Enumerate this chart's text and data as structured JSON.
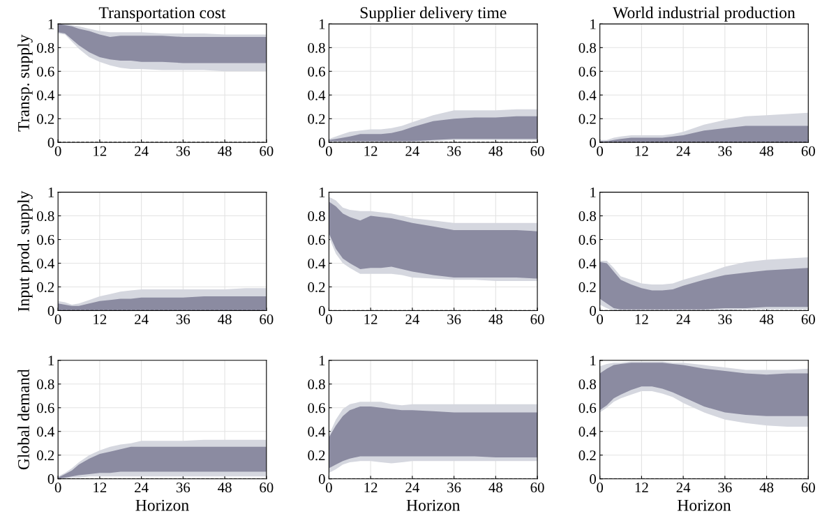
{
  "chart_data": [
    {
      "type": "area",
      "title": "Transportation cost",
      "ylabel": "Transp. supply",
      "x": [
        0,
        2,
        4,
        6,
        9,
        12,
        15,
        18,
        21,
        24,
        30,
        36,
        42,
        48,
        54,
        60
      ],
      "xlim": [
        0,
        60
      ],
      "xticks": [
        0,
        12,
        24,
        36,
        48,
        60
      ],
      "ylim": [
        0,
        1
      ],
      "yticks": [
        0,
        0.2,
        0.4,
        0.6,
        0.8,
        1
      ],
      "grid": true,
      "ref_lines": [
        {
          "axis": "y",
          "value": 0,
          "color": "#000000",
          "line_style": "dashed"
        }
      ],
      "series": [
        {
          "color": "#d5d7df",
          "values": [
            null,
            null,
            null,
            null,
            null,
            null,
            null,
            null,
            null,
            null,
            null,
            null,
            null,
            null,
            null,
            null
          ],
          "lower": [
            0.92,
            0.91,
            0.85,
            0.79,
            0.72,
            0.68,
            0.65,
            0.63,
            0.62,
            0.62,
            0.61,
            0.61,
            0.61,
            0.6,
            0.6,
            0.6
          ],
          "upper": [
            1,
            1,
            0.99,
            0.98,
            0.96,
            0.94,
            0.93,
            0.93,
            0.93,
            0.93,
            0.92,
            0.92,
            0.92,
            0.91,
            0.91,
            0.91
          ]
        },
        {
          "color": "#8b8ba1",
          "values": [
            null,
            null,
            null,
            null,
            null,
            null,
            null,
            null,
            null,
            null,
            null,
            null,
            null,
            null,
            null,
            null
          ],
          "lower": [
            0.93,
            0.92,
            0.87,
            0.82,
            0.76,
            0.72,
            0.7,
            0.69,
            0.69,
            0.68,
            0.68,
            0.67,
            0.67,
            0.67,
            0.67,
            0.67
          ],
          "upper": [
            1,
            0.99,
            0.98,
            0.96,
            0.94,
            0.91,
            0.89,
            0.9,
            0.9,
            0.9,
            0.9,
            0.89,
            0.89,
            0.89,
            0.89,
            0.89
          ]
        }
      ]
    },
    {
      "type": "area",
      "title": "Supplier delivery time",
      "x": [
        0,
        2,
        4,
        6,
        9,
        12,
        15,
        18,
        21,
        24,
        30,
        36,
        42,
        48,
        54,
        60
      ],
      "xlim": [
        0,
        60
      ],
      "xticks": [
        0,
        12,
        24,
        36,
        48,
        60
      ],
      "ylim": [
        0,
        1
      ],
      "yticks": [
        0,
        0.2,
        0.4,
        0.6,
        0.8,
        1
      ],
      "grid": true,
      "ref_lines": [
        {
          "axis": "y",
          "value": 0,
          "color": "#000000",
          "line_style": "dashed"
        }
      ],
      "series": [
        {
          "color": "#d5d7df",
          "values": [
            null,
            null,
            null,
            null,
            null,
            null,
            null,
            null,
            null,
            null,
            null,
            null,
            null,
            null,
            null,
            null
          ],
          "lower": [
            0,
            0,
            0,
            0,
            0,
            0,
            0,
            0,
            0,
            0,
            0.01,
            0.02,
            0.02,
            0.02,
            0.02,
            0.02
          ],
          "upper": [
            0.03,
            0.05,
            0.07,
            0.09,
            0.1,
            0.11,
            0.11,
            0.12,
            0.14,
            0.17,
            0.23,
            0.27,
            0.27,
            0.27,
            0.28,
            0.28
          ]
        },
        {
          "color": "#8b8ba1",
          "values": [
            null,
            null,
            null,
            null,
            null,
            null,
            null,
            null,
            null,
            null,
            null,
            null,
            null,
            null,
            null,
            null
          ],
          "lower": [
            0.01,
            0.01,
            0.01,
            0.01,
            0.01,
            0.01,
            0.01,
            0.01,
            0.01,
            0.01,
            0.02,
            0.03,
            0.03,
            0.03,
            0.03,
            0.03
          ],
          "upper": [
            0.02,
            0.03,
            0.04,
            0.05,
            0.07,
            0.07,
            0.07,
            0.08,
            0.1,
            0.13,
            0.18,
            0.2,
            0.21,
            0.21,
            0.22,
            0.22
          ]
        }
      ]
    },
    {
      "type": "area",
      "title": "World industrial production",
      "x": [
        0,
        2,
        4,
        6,
        9,
        12,
        15,
        18,
        21,
        24,
        30,
        36,
        42,
        48,
        54,
        60
      ],
      "xlim": [
        0,
        60
      ],
      "xticks": [
        0,
        12,
        24,
        36,
        48,
        60
      ],
      "ylim": [
        0,
        1
      ],
      "yticks": [
        0,
        0.2,
        0.4,
        0.6,
        0.8,
        1
      ],
      "grid": true,
      "ref_lines": [
        {
          "axis": "y",
          "value": 0,
          "color": "#000000",
          "line_style": "dashed"
        }
      ],
      "series": [
        {
          "color": "#d5d7df",
          "values": [
            null,
            null,
            null,
            null,
            null,
            null,
            null,
            null,
            null,
            null,
            null,
            null,
            null,
            null,
            null,
            null
          ],
          "lower": [
            0,
            0,
            0,
            0,
            0,
            0,
            0,
            0,
            0,
            0,
            0,
            0,
            0,
            0,
            0,
            0
          ],
          "upper": [
            0.02,
            0.02,
            0.04,
            0.05,
            0.06,
            0.06,
            0.06,
            0.06,
            0.07,
            0.09,
            0.15,
            0.19,
            0.22,
            0.23,
            0.24,
            0.25
          ]
        },
        {
          "color": "#8b8ba1",
          "values": [
            null,
            null,
            null,
            null,
            null,
            null,
            null,
            null,
            null,
            null,
            null,
            null,
            null,
            null,
            null,
            null
          ],
          "lower": [
            0,
            0,
            0,
            0,
            0,
            0,
            0,
            0,
            0,
            0,
            0,
            0,
            0,
            0,
            0,
            0
          ],
          "upper": [
            0.01,
            0.01,
            0.02,
            0.03,
            0.04,
            0.04,
            0.04,
            0.04,
            0.05,
            0.06,
            0.1,
            0.12,
            0.14,
            0.14,
            0.14,
            0.14
          ]
        }
      ]
    },
    {
      "type": "area",
      "ylabel": "Input prod. supply",
      "x": [
        0,
        2,
        4,
        6,
        9,
        12,
        15,
        18,
        21,
        24,
        30,
        36,
        42,
        48,
        54,
        60
      ],
      "xlim": [
        0,
        60
      ],
      "xticks": [
        0,
        12,
        24,
        36,
        48,
        60
      ],
      "ylim": [
        0,
        1
      ],
      "yticks": [
        0,
        0.2,
        0.4,
        0.6,
        0.8,
        1
      ],
      "grid": true,
      "ref_lines": [
        {
          "axis": "y",
          "value": 0,
          "color": "#000000",
          "line_style": "dashed"
        }
      ],
      "series": [
        {
          "color": "#d5d7df",
          "values": [
            null,
            null,
            null,
            null,
            null,
            null,
            null,
            null,
            null,
            null,
            null,
            null,
            null,
            null,
            null,
            null
          ],
          "lower": [
            0,
            0,
            0,
            0,
            0,
            0,
            0,
            0,
            0,
            0,
            0,
            0,
            0,
            0,
            0,
            0
          ],
          "upper": [
            0.08,
            0.07,
            0.05,
            0.06,
            0.09,
            0.12,
            0.14,
            0.16,
            0.17,
            0.18,
            0.18,
            0.18,
            0.18,
            0.18,
            0.19,
            0.19
          ]
        },
        {
          "color": "#8b8ba1",
          "values": [
            null,
            null,
            null,
            null,
            null,
            null,
            null,
            null,
            null,
            null,
            null,
            null,
            null,
            null,
            null,
            null
          ],
          "lower": [
            0,
            0,
            0,
            0,
            0,
            0,
            0,
            0,
            0,
            0,
            0,
            0,
            0,
            0,
            0,
            0
          ],
          "upper": [
            0.06,
            0.05,
            0.04,
            0.04,
            0.06,
            0.08,
            0.09,
            0.1,
            0.1,
            0.11,
            0.11,
            0.11,
            0.12,
            0.12,
            0.12,
            0.12
          ]
        }
      ]
    },
    {
      "type": "area",
      "x": [
        0,
        2,
        4,
        6,
        9,
        12,
        15,
        18,
        21,
        24,
        30,
        36,
        42,
        48,
        54,
        60
      ],
      "xlim": [
        0,
        60
      ],
      "xticks": [
        0,
        12,
        24,
        36,
        48,
        60
      ],
      "ylim": [
        0,
        1
      ],
      "yticks": [
        0,
        0.2,
        0.4,
        0.6,
        0.8,
        1
      ],
      "grid": true,
      "ref_lines": [
        {
          "axis": "y",
          "value": 0,
          "color": "#000000",
          "line_style": "dashed"
        }
      ],
      "series": [
        {
          "color": "#d5d7df",
          "values": [
            null,
            null,
            null,
            null,
            null,
            null,
            null,
            null,
            null,
            null,
            null,
            null,
            null,
            null,
            null,
            null
          ],
          "lower": [
            0.62,
            0.48,
            0.4,
            0.36,
            0.31,
            0.31,
            0.31,
            0.31,
            0.3,
            0.28,
            0.27,
            0.26,
            0.26,
            0.25,
            0.25,
            0.25
          ],
          "upper": [
            0.96,
            0.93,
            0.87,
            0.85,
            0.84,
            0.84,
            0.83,
            0.82,
            0.8,
            0.78,
            0.76,
            0.74,
            0.74,
            0.74,
            0.74,
            0.74
          ]
        },
        {
          "color": "#8b8ba1",
          "values": [
            null,
            null,
            null,
            null,
            null,
            null,
            null,
            null,
            null,
            null,
            null,
            null,
            null,
            null,
            null,
            null
          ],
          "lower": [
            0.65,
            0.52,
            0.44,
            0.4,
            0.35,
            0.36,
            0.36,
            0.37,
            0.35,
            0.33,
            0.3,
            0.28,
            0.28,
            0.28,
            0.28,
            0.27
          ],
          "upper": [
            0.92,
            0.88,
            0.82,
            0.79,
            0.76,
            0.8,
            0.79,
            0.78,
            0.76,
            0.74,
            0.71,
            0.68,
            0.68,
            0.68,
            0.68,
            0.67
          ]
        }
      ]
    },
    {
      "type": "area",
      "x": [
        0,
        2,
        4,
        6,
        9,
        12,
        15,
        18,
        21,
        24,
        30,
        36,
        42,
        48,
        54,
        60
      ],
      "xlim": [
        0,
        60
      ],
      "xticks": [
        0,
        12,
        24,
        36,
        48,
        60
      ],
      "ylim": [
        0,
        1
      ],
      "yticks": [
        0,
        0.2,
        0.4,
        0.6,
        0.8,
        1
      ],
      "grid": true,
      "ref_lines": [
        {
          "axis": "y",
          "value": 0,
          "color": "#000000",
          "line_style": "dashed"
        }
      ],
      "series": [
        {
          "color": "#d5d7df",
          "values": [
            null,
            null,
            null,
            null,
            null,
            null,
            null,
            null,
            null,
            null,
            null,
            null,
            null,
            null,
            null,
            null
          ],
          "lower": [
            0.05,
            0.02,
            0,
            0,
            0,
            0,
            0,
            0,
            0,
            0,
            0,
            0,
            0.01,
            0.01,
            0.01,
            0.01
          ],
          "upper": [
            0.42,
            0.42,
            0.36,
            0.29,
            0.26,
            0.23,
            0.22,
            0.22,
            0.23,
            0.26,
            0.31,
            0.37,
            0.41,
            0.43,
            0.44,
            0.45
          ]
        },
        {
          "color": "#8b8ba1",
          "values": [
            null,
            null,
            null,
            null,
            null,
            null,
            null,
            null,
            null,
            null,
            null,
            null,
            null,
            null,
            null,
            null
          ],
          "lower": [
            0.1,
            0.06,
            0.02,
            0.01,
            0.01,
            0.01,
            0.01,
            0.01,
            0.01,
            0.01,
            0.01,
            0.02,
            0.02,
            0.03,
            0.03,
            0.03
          ],
          "upper": [
            0.41,
            0.4,
            0.33,
            0.26,
            0.22,
            0.19,
            0.17,
            0.17,
            0.18,
            0.21,
            0.26,
            0.3,
            0.32,
            0.34,
            0.35,
            0.36
          ]
        }
      ]
    },
    {
      "type": "area",
      "ylabel": "Global demand",
      "xlabel": "Horizon",
      "x": [
        0,
        2,
        4,
        6,
        9,
        12,
        15,
        18,
        21,
        24,
        30,
        36,
        42,
        48,
        54,
        60
      ],
      "xlim": [
        0,
        60
      ],
      "xticks": [
        0,
        12,
        24,
        36,
        48,
        60
      ],
      "ylim": [
        0,
        1
      ],
      "yticks": [
        0,
        0.2,
        0.4,
        0.6,
        0.8,
        1
      ],
      "grid": true,
      "ref_lines": [
        {
          "axis": "y",
          "value": 0,
          "color": "#000000",
          "line_style": "dashed"
        }
      ],
      "series": [
        {
          "color": "#d5d7df",
          "values": [
            null,
            null,
            null,
            null,
            null,
            null,
            null,
            null,
            null,
            null,
            null,
            null,
            null,
            null,
            null,
            null
          ],
          "lower": [
            0,
            0,
            0.01,
            0.01,
            0.02,
            0.02,
            0.02,
            0.02,
            0.02,
            0.02,
            0.02,
            0.02,
            0.02,
            0.02,
            0.02,
            0.02
          ],
          "upper": [
            0.02,
            0.05,
            0.09,
            0.14,
            0.2,
            0.24,
            0.27,
            0.29,
            0.3,
            0.32,
            0.32,
            0.32,
            0.33,
            0.33,
            0.33,
            0.33
          ]
        },
        {
          "color": "#8b8ba1",
          "values": [
            null,
            null,
            null,
            null,
            null,
            null,
            null,
            null,
            null,
            null,
            null,
            null,
            null,
            null,
            null,
            null
          ],
          "lower": [
            0,
            0.01,
            0.02,
            0.03,
            0.04,
            0.05,
            0.05,
            0.06,
            0.06,
            0.06,
            0.06,
            0.06,
            0.06,
            0.06,
            0.06,
            0.06
          ],
          "upper": [
            0.01,
            0.04,
            0.07,
            0.12,
            0.17,
            0.21,
            0.23,
            0.25,
            0.27,
            0.27,
            0.27,
            0.27,
            0.27,
            0.27,
            0.27,
            0.27
          ]
        }
      ]
    },
    {
      "type": "area",
      "xlabel": "Horizon",
      "x": [
        0,
        2,
        4,
        6,
        9,
        12,
        15,
        18,
        21,
        24,
        30,
        36,
        42,
        48,
        54,
        60
      ],
      "xlim": [
        0,
        60
      ],
      "xticks": [
        0,
        12,
        24,
        36,
        48,
        60
      ],
      "ylim": [
        0,
        1
      ],
      "yticks": [
        0,
        0.2,
        0.4,
        0.6,
        0.8,
        1
      ],
      "grid": true,
      "ref_lines": [
        {
          "axis": "y",
          "value": 0,
          "color": "#000000",
          "line_style": "dashed"
        }
      ],
      "series": [
        {
          "color": "#d5d7df",
          "values": [
            null,
            null,
            null,
            null,
            null,
            null,
            null,
            null,
            null,
            null,
            null,
            null,
            null,
            null,
            null,
            null
          ],
          "lower": [
            0.05,
            0.08,
            0.12,
            0.14,
            0.15,
            0.15,
            0.14,
            0.13,
            0.14,
            0.15,
            0.15,
            0.15,
            0.15,
            0.15,
            0.15,
            0.15
          ],
          "upper": [
            0.37,
            0.5,
            0.59,
            0.63,
            0.65,
            0.65,
            0.65,
            0.63,
            0.62,
            0.63,
            0.63,
            0.63,
            0.63,
            0.63,
            0.63,
            0.63
          ]
        },
        {
          "color": "#8b8ba1",
          "values": [
            null,
            null,
            null,
            null,
            null,
            null,
            null,
            null,
            null,
            null,
            null,
            null,
            null,
            null,
            null,
            null
          ],
          "lower": [
            0.09,
            0.12,
            0.15,
            0.17,
            0.19,
            0.19,
            0.19,
            0.19,
            0.19,
            0.19,
            0.19,
            0.19,
            0.19,
            0.18,
            0.18,
            0.18
          ],
          "upper": [
            0.35,
            0.45,
            0.53,
            0.58,
            0.61,
            0.61,
            0.6,
            0.59,
            0.58,
            0.58,
            0.57,
            0.56,
            0.56,
            0.56,
            0.56,
            0.56
          ]
        }
      ]
    },
    {
      "type": "area",
      "xlabel": "Horizon",
      "x": [
        0,
        2,
        4,
        6,
        9,
        12,
        15,
        18,
        21,
        24,
        30,
        36,
        42,
        48,
        54,
        60
      ],
      "xlim": [
        0,
        60
      ],
      "xticks": [
        0,
        12,
        24,
        36,
        48,
        60
      ],
      "ylim": [
        0,
        1
      ],
      "yticks": [
        0,
        0.2,
        0.4,
        0.6,
        0.8,
        1
      ],
      "grid": true,
      "ref_lines": [
        {
          "axis": "y",
          "value": 0,
          "color": "#000000",
          "line_style": "dashed"
        }
      ],
      "series": [
        {
          "color": "#d5d7df",
          "values": [
            null,
            null,
            null,
            null,
            null,
            null,
            null,
            null,
            null,
            null,
            null,
            null,
            null,
            null,
            null,
            null
          ],
          "lower": [
            0.56,
            0.6,
            0.65,
            0.68,
            0.71,
            0.74,
            0.74,
            0.72,
            0.69,
            0.64,
            0.56,
            0.5,
            0.47,
            0.45,
            0.44,
            0.44
          ],
          "upper": [
            0.95,
            0.97,
            0.98,
            0.98,
            0.99,
            0.99,
            0.99,
            0.99,
            0.98,
            0.98,
            0.96,
            0.94,
            0.92,
            0.92,
            0.92,
            0.93
          ]
        },
        {
          "color": "#8b8ba1",
          "values": [
            null,
            null,
            null,
            null,
            null,
            null,
            null,
            null,
            null,
            null,
            null,
            null,
            null,
            null,
            null,
            null
          ],
          "lower": [
            0.58,
            0.62,
            0.68,
            0.71,
            0.75,
            0.78,
            0.78,
            0.76,
            0.73,
            0.69,
            0.61,
            0.56,
            0.54,
            0.53,
            0.53,
            0.53
          ],
          "upper": [
            0.89,
            0.93,
            0.96,
            0.97,
            0.98,
            0.98,
            0.98,
            0.98,
            0.97,
            0.96,
            0.93,
            0.91,
            0.89,
            0.88,
            0.89,
            0.89
          ]
        }
      ]
    }
  ]
}
